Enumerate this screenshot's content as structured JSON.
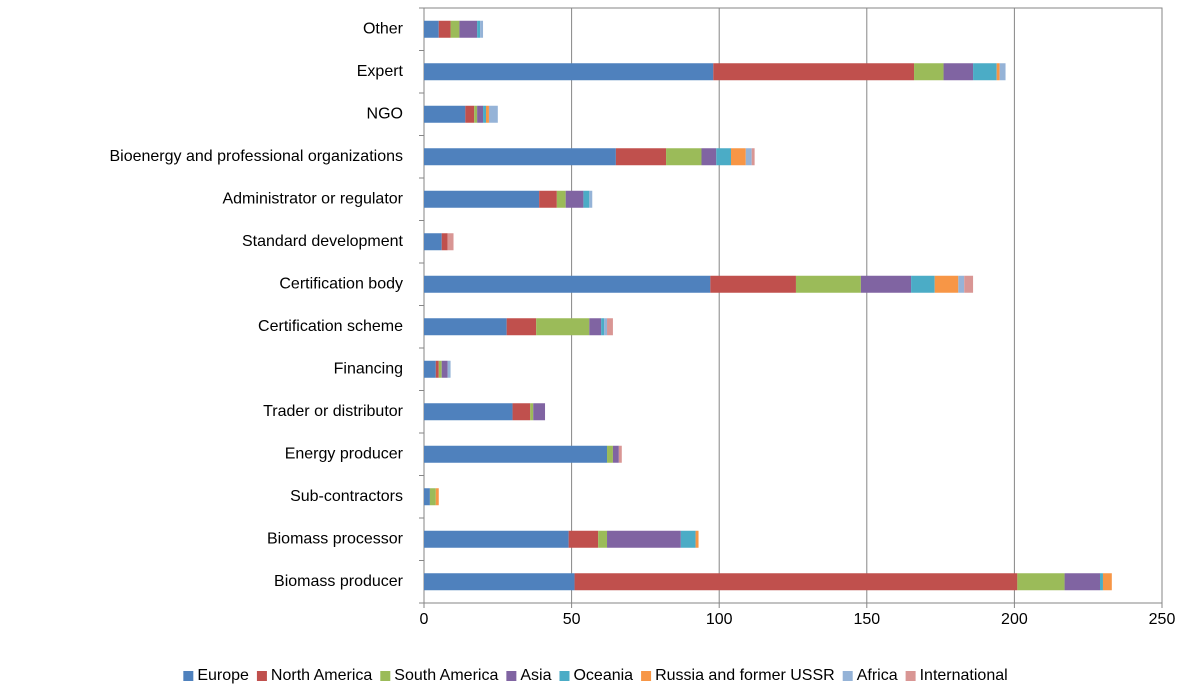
{
  "chart_data": {
    "type": "stacked-bar-horizontal",
    "categories": [
      "Other",
      "Expert",
      "NGO",
      "Bioenergy and professional organizations",
      "Administrator or regulator",
      "Standard development",
      "Certification body",
      "Certification scheme",
      "Financing",
      "Trader or distributor",
      "Energy producer",
      "Sub-contractors",
      "Biomass processor",
      "Biomass producer"
    ],
    "series": [
      {
        "name": "Europe",
        "color": "#4f81bd",
        "values": [
          5,
          98,
          14,
          65,
          39,
          6,
          97,
          28,
          4,
          30,
          62,
          2,
          49,
          51
        ]
      },
      {
        "name": "North America",
        "color": "#c0504d",
        "values": [
          4,
          68,
          3,
          17,
          6,
          2,
          29,
          10,
          1,
          6,
          0,
          0,
          10,
          150
        ]
      },
      {
        "name": "South America",
        "color": "#9bbb59",
        "values": [
          3,
          10,
          1,
          12,
          3,
          0,
          22,
          18,
          1,
          1,
          2,
          2,
          3,
          16
        ]
      },
      {
        "name": "Asia",
        "color": "#8064a2",
        "values": [
          6,
          10,
          2,
          5,
          6,
          0,
          17,
          4,
          2,
          4,
          2,
          0,
          25,
          12
        ]
      },
      {
        "name": "Oceania",
        "color": "#4bacc6",
        "values": [
          1,
          8,
          1,
          5,
          2,
          0,
          8,
          1,
          0,
          0,
          0,
          0,
          5,
          1
        ]
      },
      {
        "name": "Russia and former USSR",
        "color": "#f79646",
        "values": [
          0,
          1,
          1,
          5,
          0,
          0,
          8,
          0,
          0,
          0,
          0,
          1,
          1,
          3
        ]
      },
      {
        "name": "Africa",
        "color": "#95b3d7",
        "values": [
          1,
          2,
          3,
          2,
          1,
          0,
          2,
          1,
          1,
          0,
          0,
          0,
          0,
          0
        ]
      },
      {
        "name": "International",
        "color": "#d99694",
        "values": [
          0,
          0,
          0,
          1,
          0,
          2,
          3,
          2,
          0,
          0,
          1,
          0,
          0,
          0
        ]
      }
    ],
    "xlim": [
      0,
      250
    ],
    "xticks": [
      0,
      50,
      100,
      150,
      200,
      250
    ],
    "grid": true,
    "legend": "bottom"
  }
}
